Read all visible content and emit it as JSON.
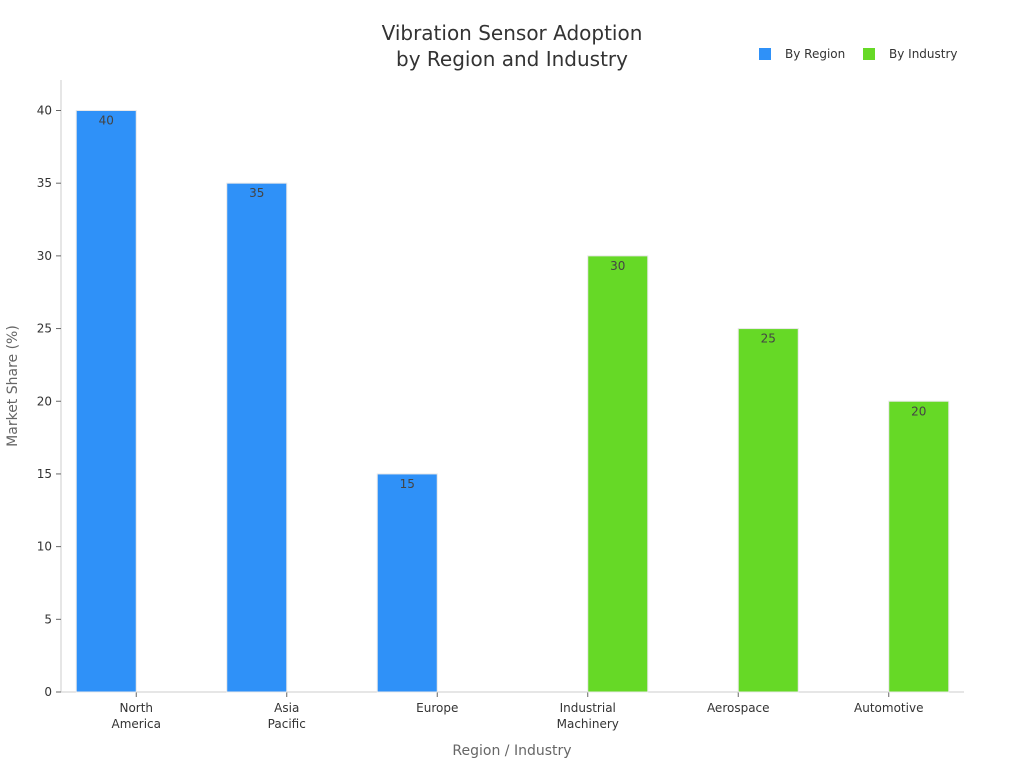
{
  "chart_data": {
    "type": "bar",
    "title_lines": [
      "Vibration Sensor Adoption",
      "by Region and Industry"
    ],
    "xlabel": "Region / Industry",
    "ylabel": "Market Share (%)",
    "ylim": [
      0,
      42
    ],
    "yticks": [
      0,
      5,
      10,
      15,
      20,
      25,
      30,
      35,
      40
    ],
    "grid": false,
    "legend_position": "top-right",
    "categories": [
      [
        "North",
        "America"
      ],
      [
        "Asia",
        "Pacific"
      ],
      [
        "Europe"
      ],
      [
        "Industrial",
        "Machinery"
      ],
      [
        "Aerospace"
      ],
      [
        "Automotive"
      ]
    ],
    "series": [
      {
        "name": "By Region",
        "color": "#2f91f8",
        "values": [
          40,
          35,
          15,
          null,
          null,
          null
        ]
      },
      {
        "name": "By Industry",
        "color": "#66d926",
        "values": [
          null,
          null,
          null,
          30,
          25,
          20
        ]
      }
    ]
  }
}
